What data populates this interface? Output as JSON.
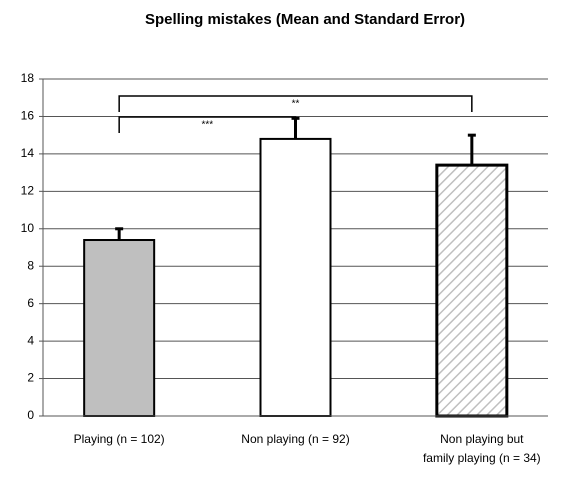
{
  "chart_data": {
    "type": "bar",
    "title": "Spelling mistakes (Mean and Standard Error)",
    "categories": [
      [
        "Playing (n = 102)"
      ],
      [
        "Non playing (n = 92)"
      ],
      [
        "Non playing but",
        "family playing (n = 34)"
      ]
    ],
    "values": [
      9.4,
      14.8,
      13.4
    ],
    "errors": [
      0.6,
      1.1,
      1.6
    ],
    "colors": [
      "#bfbfbf",
      "#ffffff",
      "hatch"
    ],
    "ylim": [
      0,
      18
    ],
    "yticks": [
      0,
      2,
      4,
      6,
      8,
      10,
      12,
      14,
      16,
      18
    ],
    "grid": true,
    "annotations": [
      {
        "from": 0,
        "to": 1,
        "label": "***"
      },
      {
        "from": 0,
        "to": 2,
        "label": "**"
      }
    ]
  }
}
